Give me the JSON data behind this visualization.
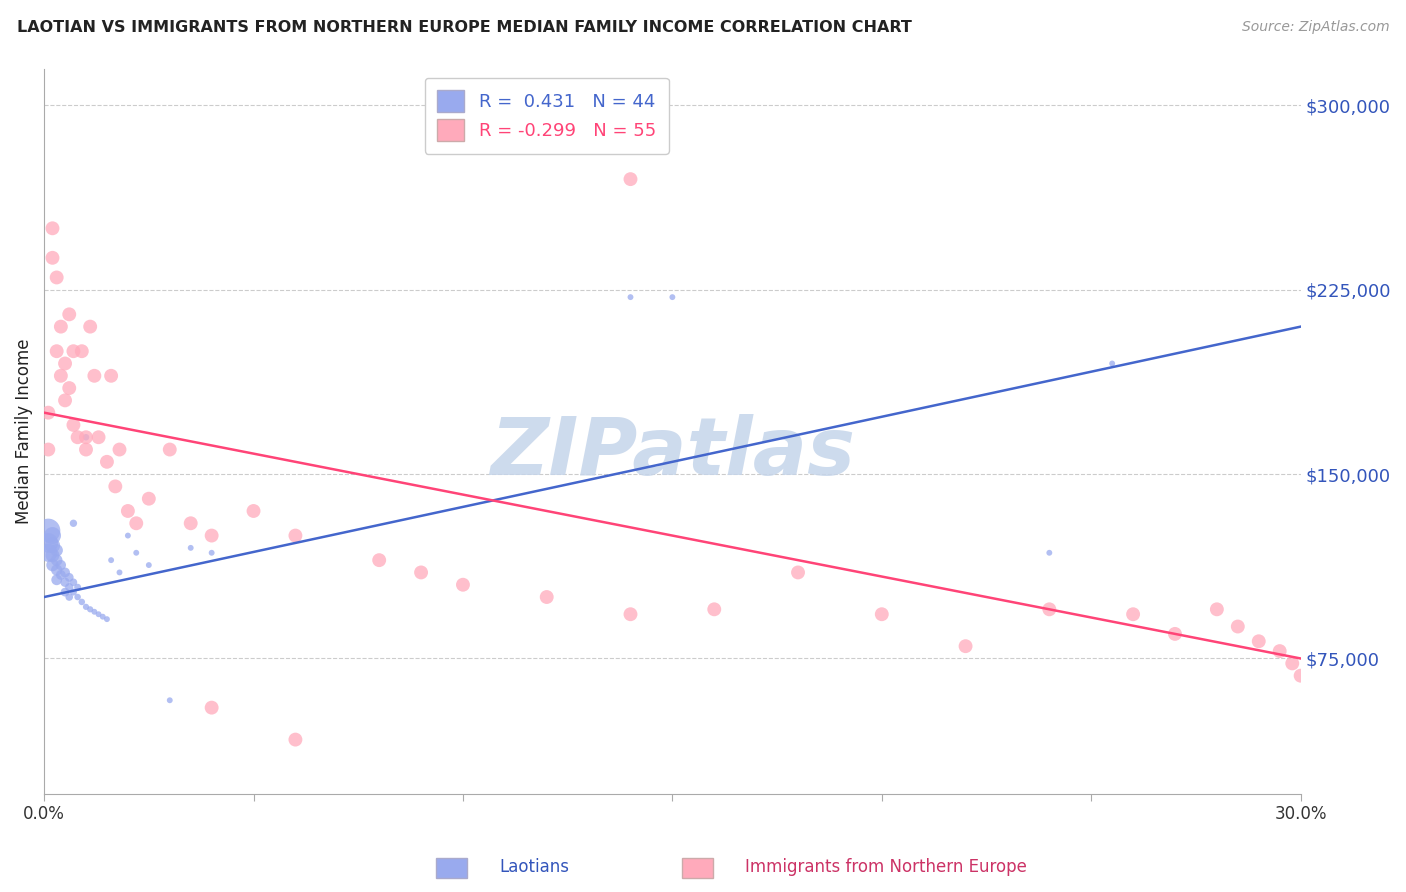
{
  "title": "LAOTIAN VS IMMIGRANTS FROM NORTHERN EUROPE MEDIAN FAMILY INCOME CORRELATION CHART",
  "source": "Source: ZipAtlas.com",
  "ylabel": "Median Family Income",
  "yticks": [
    75000,
    150000,
    225000,
    300000
  ],
  "ytick_labels": [
    "$75,000",
    "$150,000",
    "$225,000",
    "$300,000"
  ],
  "xmin": 0.0,
  "xmax": 0.3,
  "ymin": 20000,
  "ymax": 315000,
  "series1_color": "#99aaee",
  "series2_color": "#ffaabb",
  "line1_color": "#4466cc",
  "line2_color": "#ff4477",
  "watermark": "ZIPatlas",
  "watermark_color": "#c5d5ea",
  "line1_x0": 0.0,
  "line1_y0": 100000,
  "line1_x1": 0.3,
  "line1_y1": 210000,
  "line2_x0": 0.0,
  "line2_y0": 175000,
  "line2_x1": 0.3,
  "line2_y1": 75000,
  "laotians_x": [
    0.001,
    0.001,
    0.001,
    0.002,
    0.002,
    0.002,
    0.002,
    0.003,
    0.003,
    0.003,
    0.003,
    0.004,
    0.004,
    0.005,
    0.005,
    0.005,
    0.006,
    0.006,
    0.006,
    0.007,
    0.007,
    0.007,
    0.008,
    0.008,
    0.009,
    0.01,
    0.01,
    0.011,
    0.012,
    0.013,
    0.014,
    0.015,
    0.016,
    0.018,
    0.02,
    0.022,
    0.025,
    0.03,
    0.035,
    0.04,
    0.14,
    0.15,
    0.24,
    0.255
  ],
  "laotians_y": [
    127000,
    122000,
    118000,
    125000,
    121000,
    117000,
    113000,
    119000,
    115000,
    111000,
    107000,
    113000,
    109000,
    110000,
    106000,
    102000,
    108000,
    104000,
    100000,
    106000,
    130000,
    102000,
    104000,
    100000,
    98000,
    165000,
    96000,
    95000,
    94000,
    93000,
    92000,
    91000,
    115000,
    110000,
    125000,
    118000,
    113000,
    58000,
    120000,
    118000,
    222000,
    222000,
    118000,
    195000
  ],
  "laotians_sizes": [
    300,
    200,
    170,
    150,
    120,
    100,
    80,
    80,
    70,
    65,
    60,
    55,
    50,
    50,
    45,
    40,
    40,
    35,
    30,
    30,
    28,
    25,
    25,
    22,
    22,
    22,
    20,
    20,
    18,
    18,
    18,
    18,
    18,
    18,
    18,
    18,
    18,
    18,
    18,
    18,
    18,
    18,
    18,
    18
  ],
  "ne_x": [
    0.001,
    0.001,
    0.002,
    0.002,
    0.003,
    0.003,
    0.004,
    0.004,
    0.005,
    0.005,
    0.006,
    0.006,
    0.007,
    0.007,
    0.008,
    0.009,
    0.01,
    0.01,
    0.011,
    0.012,
    0.013,
    0.015,
    0.016,
    0.017,
    0.018,
    0.02,
    0.022,
    0.025,
    0.03,
    0.035,
    0.04,
    0.05,
    0.06,
    0.08,
    0.09,
    0.1,
    0.12,
    0.14,
    0.16,
    0.18,
    0.2,
    0.22,
    0.24,
    0.26,
    0.27,
    0.28,
    0.285,
    0.29,
    0.295,
    0.298,
    0.3,
    0.302,
    0.04,
    0.06,
    0.14
  ],
  "ne_y": [
    175000,
    160000,
    250000,
    238000,
    230000,
    200000,
    210000,
    190000,
    195000,
    180000,
    215000,
    185000,
    200000,
    170000,
    165000,
    200000,
    165000,
    160000,
    210000,
    190000,
    165000,
    155000,
    190000,
    145000,
    160000,
    135000,
    130000,
    140000,
    160000,
    130000,
    125000,
    135000,
    125000,
    115000,
    110000,
    105000,
    100000,
    93000,
    95000,
    110000,
    93000,
    80000,
    95000,
    93000,
    85000,
    95000,
    88000,
    82000,
    78000,
    73000,
    68000,
    65000,
    55000,
    42000,
    270000
  ]
}
